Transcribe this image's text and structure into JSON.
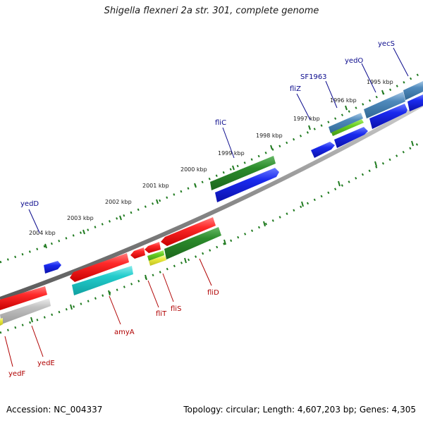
{
  "header": {
    "title": "Shigella flexneri 2a str. 301, complete genome"
  },
  "footer": {
    "accession": "Accession: NC_004337",
    "stats": "Topology: circular; Length: 4,607,203 bp; Genes: 4,305"
  },
  "colors": {
    "backbone": "#8a8a8a",
    "tick": "#1f7a1f",
    "forward_label": "#0a0a8c",
    "reverse_label": "#b00000",
    "red": "#ee1111",
    "blue": "#1020dd",
    "green": "#2a8a2a",
    "cyan": "#22c8c8",
    "steelblue": "#4a86b4",
    "gray": "#b8b8b8",
    "yellow": "#e6e640",
    "lightgreen": "#66cc22"
  },
  "scale_labels": [
    {
      "id": "kbp-2004",
      "text": "2004 kbp"
    },
    {
      "id": "kbp-2003",
      "text": "2003 kbp"
    },
    {
      "id": "kbp-2002",
      "text": "2002 kbp"
    },
    {
      "id": "kbp-2001",
      "text": "2001 kbp"
    },
    {
      "id": "kbp-2000",
      "text": "2000 kbp"
    },
    {
      "id": "kbp-1999",
      "text": "1999 kbp"
    },
    {
      "id": "kbp-1998",
      "text": "1998 kbp"
    },
    {
      "id": "kbp-1997",
      "text": "1997 kbp"
    },
    {
      "id": "kbp-1996",
      "text": "1996 kbp"
    },
    {
      "id": "kbp-1995",
      "text": "1995 kbp"
    }
  ],
  "gene_labels": [
    {
      "id": "yedD",
      "text": "yedD",
      "strand": "forward"
    },
    {
      "id": "fliC",
      "text": "fliC",
      "strand": "forward"
    },
    {
      "id": "fliZ",
      "text": "fliZ",
      "strand": "forward"
    },
    {
      "id": "SF1963",
      "text": "SF1963",
      "strand": "forward"
    },
    {
      "id": "yedO",
      "text": "yedO",
      "strand": "forward"
    },
    {
      "id": "yecS",
      "text": "yecS",
      "strand": "forward"
    },
    {
      "id": "amyA",
      "text": "amyA",
      "strand": "reverse"
    },
    {
      "id": "fliT",
      "text": "fliT",
      "strand": "reverse"
    },
    {
      "id": "fliS",
      "text": "fliS",
      "strand": "reverse"
    },
    {
      "id": "fliD",
      "text": "fliD",
      "strand": "reverse"
    },
    {
      "id": "yedE",
      "text": "yedE",
      "strand": "reverse"
    },
    {
      "id": "yedF",
      "text": "yedF",
      "strand": "reverse"
    }
  ]
}
